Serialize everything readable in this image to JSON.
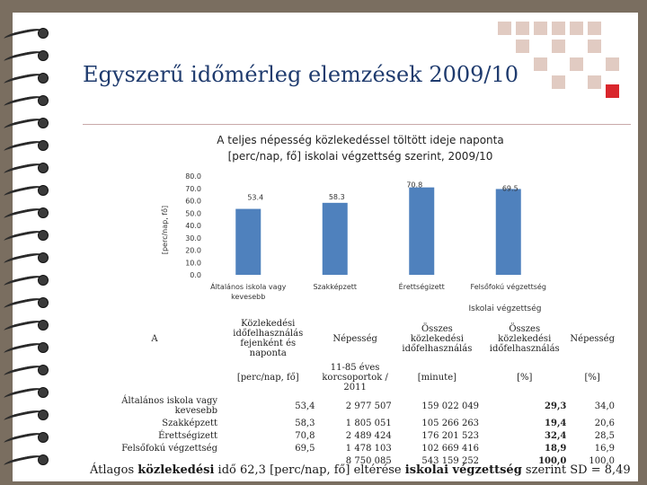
{
  "title": "Egyszerű időmérleg elemzések 2009/10",
  "decor_colors": {
    "squares": "#c8a090",
    "accent": "#d9262c",
    "background": "#7a6e60",
    "title": "#1f3b6e"
  },
  "chart_data": {
    "type": "bar",
    "title": "A teljes népesség közlekedéssel töltött ideje naponta [perc/nap, fő] iskolai végzettség szerint, 2009/10",
    "title_lines": [
      "A teljes népesség közlekedéssel töltött ideje naponta",
      "[perc/nap, fő] iskolai végzettség szerint, 2009/10"
    ],
    "categories": [
      "Általános iskola vagy kevesebb",
      "Szakképzett",
      "Érettségizett",
      "Felsőfokú végzettség"
    ],
    "category_lines": [
      [
        "Általános iskola vagy",
        "kevesebb"
      ],
      [
        "Szakképzett"
      ],
      [
        "Érettségizett"
      ],
      [
        "Felsőfokú végzettség"
      ]
    ],
    "values": [
      53.4,
      58.3,
      70.8,
      69.5
    ],
    "value_labels": [
      "53.4",
      "58.3",
      "70.8",
      "69.5"
    ],
    "ylabel": "[perc/nap, fő]",
    "xlabel": "Iskolai végzettség",
    "ylim": [
      0,
      80
    ],
    "yticks": [
      "0.0",
      "10.0",
      "20.0",
      "30.0",
      "40.0",
      "50.0",
      "60.0",
      "70.0",
      "80.0"
    ],
    "bar_color": "#4f81bd",
    "grid": false
  },
  "table": {
    "header_row1": [
      "A",
      "Közlekedési időfelhasználás fejenként és naponta",
      "Népesség",
      "Összes közlekedési időfelhasználás",
      "Összes közlekedési időfelhasználás",
      "Népesség"
    ],
    "header_row2": [
      "",
      "[perc/nap, fő]",
      "11-85 éves korcsoportok / 2011",
      "[minute]",
      "[%]",
      "[%]"
    ],
    "rows": [
      {
        "label": "Általános iskola vagy kevesebb",
        "time": "53,4",
        "pop": "2 977 507",
        "total": "159 022 049",
        "pct": "29,3",
        "pop_pct": "34,0"
      },
      {
        "label": "Szakképzett",
        "time": "58,3",
        "pop": "1 805 051",
        "total": "105 266 263",
        "pct": "19,4",
        "pop_pct": "20,6"
      },
      {
        "label": "Érettségizett",
        "time": "70,8",
        "pop": "2 489 424",
        "total": "176 201 523",
        "pct": "32,4",
        "pop_pct": "28,5"
      },
      {
        "label": "Felsőfokú végzettség",
        "time": "69,5",
        "pop": "1 478 103",
        "total": "102 669 416",
        "pct": "18,9",
        "pop_pct": "16,9"
      },
      {
        "label": "",
        "time": "",
        "pop": "8 750 085",
        "total": "543 159 252",
        "pct": "100,0",
        "pop_pct": "100,0"
      }
    ]
  },
  "footer": {
    "p1": "Átlagos ",
    "b1": "közlekedési",
    "p2": " idő 62,3 [perc/nap, fő] eltérése ",
    "b2": "iskolai végzettség",
    "p3": " szerint SD = 8,49"
  }
}
